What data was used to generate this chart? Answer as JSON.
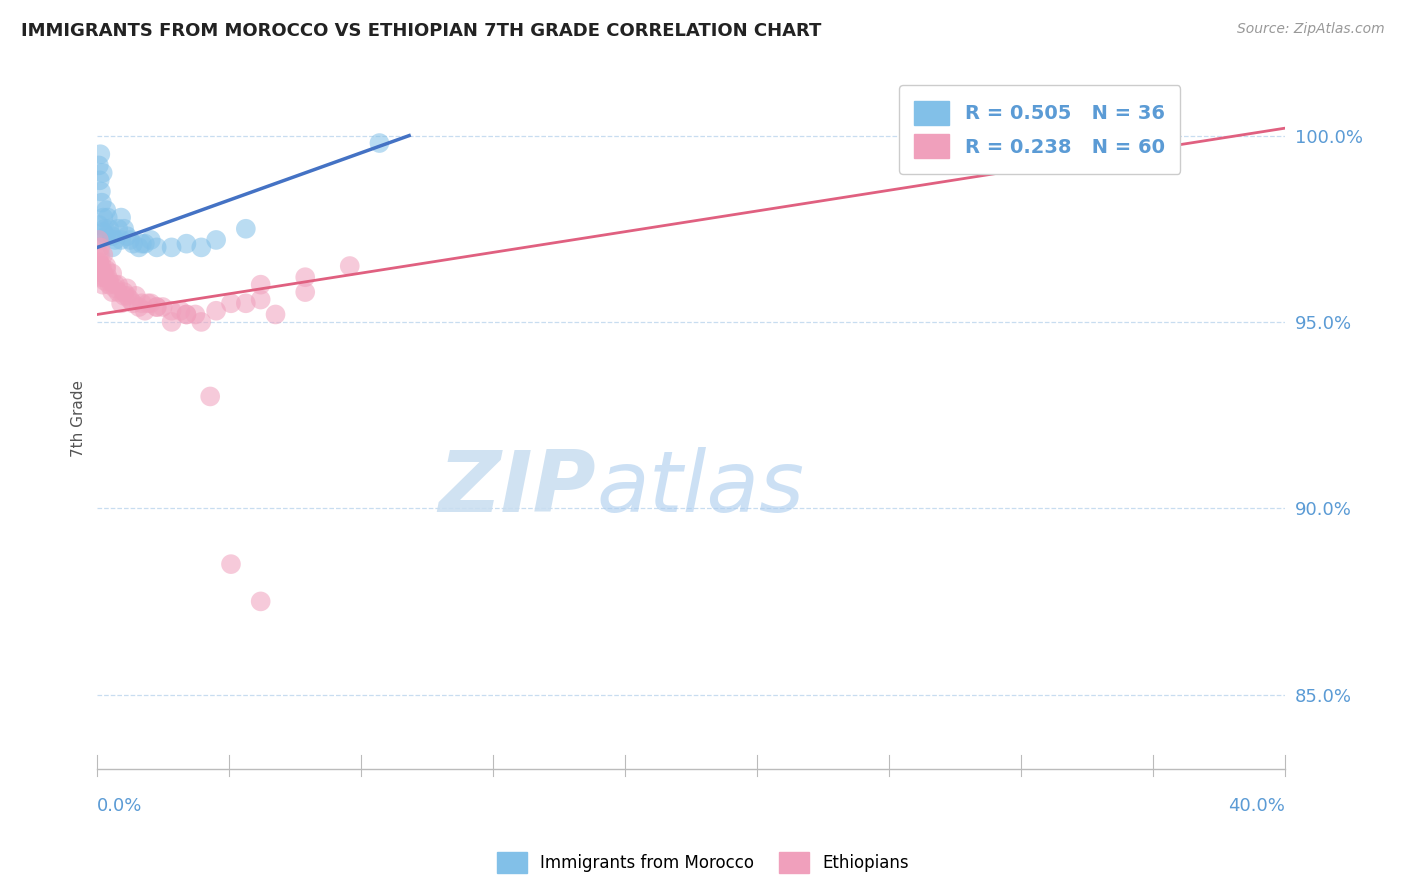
{
  "title": "IMMIGRANTS FROM MOROCCO VS ETHIOPIAN 7TH GRADE CORRELATION CHART",
  "source_text": "Source: ZipAtlas.com",
  "ylabel": "7th Grade",
  "x_label_bottom_left": "0.0%",
  "x_label_bottom_right": "40.0%",
  "xlim": [
    0.0,
    40.0
  ],
  "ylim": [
    83.0,
    101.8
  ],
  "y_ticks": [
    85.0,
    90.0,
    95.0,
    100.0
  ],
  "y_tick_labels": [
    "85.0%",
    "90.0%",
    "95.0%",
    "100.0%"
  ],
  "legend_r1": "R = 0.505",
  "legend_n1": "N = 36",
  "legend_r2": "R = 0.238",
  "legend_n2": "N = 60",
  "color_blue": "#82c0e8",
  "color_pink": "#f0a0bc",
  "color_blue_line": "#4472c4",
  "color_pink_line": "#e06080",
  "color_axis_labels": "#5b9bd5",
  "color_ylabel": "#555555",
  "watermark_zip": "ZIP",
  "watermark_atlas": "atlas",
  "blue_scatter_x": [
    0.05,
    0.08,
    0.1,
    0.12,
    0.15,
    0.18,
    0.2,
    0.25,
    0.3,
    0.35,
    0.4,
    0.5,
    0.6,
    0.7,
    0.8,
    0.9,
    1.0,
    1.1,
    1.2,
    1.4,
    1.6,
    1.8,
    2.0,
    2.5,
    3.0,
    3.5,
    4.0,
    5.0,
    0.05,
    0.1,
    0.2,
    0.3,
    0.5,
    0.8,
    1.5,
    9.5
  ],
  "blue_scatter_y": [
    99.2,
    98.8,
    99.5,
    98.5,
    98.2,
    99.0,
    97.8,
    97.5,
    98.0,
    97.8,
    97.5,
    97.3,
    97.2,
    97.5,
    97.8,
    97.5,
    97.3,
    97.2,
    97.1,
    97.0,
    97.1,
    97.2,
    97.0,
    97.0,
    97.1,
    97.0,
    97.2,
    97.5,
    97.6,
    97.2,
    97.4,
    97.3,
    97.0,
    97.2,
    97.1,
    99.8
  ],
  "pink_scatter_x": [
    0.05,
    0.08,
    0.1,
    0.12,
    0.15,
    0.18,
    0.2,
    0.25,
    0.3,
    0.35,
    0.4,
    0.5,
    0.6,
    0.7,
    0.8,
    0.9,
    1.0,
    1.1,
    1.2,
    1.4,
    1.6,
    1.8,
    2.0,
    2.5,
    3.0,
    3.5,
    4.0,
    5.0,
    6.0,
    7.0,
    0.05,
    0.1,
    0.2,
    0.3,
    0.5,
    0.7,
    1.0,
    1.3,
    1.7,
    2.2,
    2.8,
    3.3,
    4.5,
    5.5,
    0.06,
    0.15,
    0.25,
    0.4,
    0.6,
    0.9,
    1.5,
    2.0,
    3.0,
    5.5,
    7.0,
    8.5,
    4.5,
    5.5,
    3.8,
    2.5
  ],
  "pink_scatter_y": [
    96.8,
    96.5,
    96.8,
    96.2,
    96.5,
    96.0,
    96.3,
    96.1,
    96.4,
    96.2,
    96.0,
    95.8,
    96.0,
    95.8,
    95.5,
    95.8,
    95.7,
    95.6,
    95.5,
    95.4,
    95.3,
    95.5,
    95.4,
    95.3,
    95.2,
    95.0,
    95.3,
    95.5,
    95.2,
    95.8,
    97.2,
    97.0,
    96.8,
    96.5,
    96.3,
    96.0,
    95.9,
    95.7,
    95.5,
    95.4,
    95.3,
    95.2,
    95.5,
    95.6,
    96.6,
    96.4,
    96.2,
    96.1,
    95.9,
    95.7,
    95.5,
    95.4,
    95.2,
    96.0,
    96.2,
    96.5,
    88.5,
    87.5,
    93.0,
    95.0
  ],
  "blue_trend_x": [
    0.0,
    10.5
  ],
  "blue_trend_y": [
    97.0,
    100.0
  ],
  "pink_trend_x": [
    0.0,
    40.0
  ],
  "pink_trend_y": [
    95.2,
    100.2
  ]
}
